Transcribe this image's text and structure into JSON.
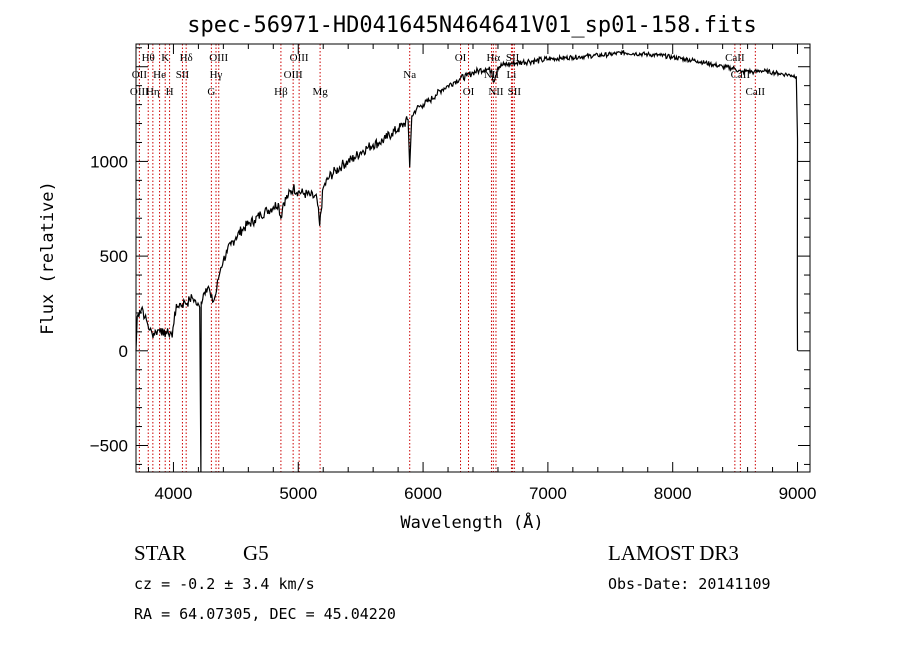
{
  "chart_data": {
    "type": "line",
    "title": "spec-56971-HD041645N464641V01_sp01-158.fits",
    "xlabel": "Wavelength (Å)",
    "ylabel": "Flux (relative)",
    "xlim": [
      3700,
      9100
    ],
    "ylim": [
      -640,
      1620
    ],
    "x_ticks": [
      4000,
      5000,
      6000,
      7000,
      8000,
      9000
    ],
    "y_ticks": [
      -500,
      0,
      500,
      1000
    ],
    "grid": false,
    "series": [
      {
        "points": [
          [
            3700,
            0
          ],
          [
            3710,
            180
          ],
          [
            3730,
            210
          ],
          [
            3750,
            230
          ],
          [
            3770,
            175
          ],
          [
            3790,
            150
          ],
          [
            3810,
            110
          ],
          [
            3830,
            90
          ],
          [
            3860,
            100
          ],
          [
            3880,
            110
          ],
          [
            3900,
            120
          ],
          [
            3920,
            80
          ],
          [
            3940,
            100
          ],
          [
            3960,
            90
          ],
          [
            3980,
            100
          ],
          [
            3990,
            70
          ],
          [
            4010,
            200
          ],
          [
            4030,
            230
          ],
          [
            4050,
            250
          ],
          [
            4070,
            240
          ],
          [
            4090,
            260
          ],
          [
            4110,
            250
          ],
          [
            4130,
            270
          ],
          [
            4150,
            280
          ],
          [
            4170,
            270
          ],
          [
            4190,
            240
          ],
          [
            4210,
            230
          ],
          [
            4220,
            -640
          ],
          [
            4222,
            260
          ],
          [
            4240,
            300
          ],
          [
            4260,
            330
          ],
          [
            4280,
            340
          ],
          [
            4300,
            280
          ],
          [
            4320,
            260
          ],
          [
            4340,
            300
          ],
          [
            4360,
            380
          ],
          [
            4380,
            440
          ],
          [
            4400,
            480
          ],
          [
            4430,
            520
          ],
          [
            4460,
            560
          ],
          [
            4500,
            600
          ],
          [
            4550,
            640
          ],
          [
            4600,
            670
          ],
          [
            4650,
            690
          ],
          [
            4700,
            720
          ],
          [
            4750,
            740
          ],
          [
            4800,
            760
          ],
          [
            4840,
            780
          ],
          [
            4861,
            700
          ],
          [
            4880,
            780
          ],
          [
            4920,
            820
          ],
          [
            4960,
            860
          ],
          [
            5000,
            840
          ],
          [
            5050,
            830
          ],
          [
            5100,
            820
          ],
          [
            5150,
            800
          ],
          [
            5172,
            660
          ],
          [
            5200,
            860
          ],
          [
            5250,
            920
          ],
          [
            5300,
            950
          ],
          [
            5350,
            980
          ],
          [
            5400,
            1000
          ],
          [
            5450,
            1020
          ],
          [
            5500,
            1050
          ],
          [
            5550,
            1070
          ],
          [
            5600,
            1090
          ],
          [
            5650,
            1100
          ],
          [
            5700,
            1120
          ],
          [
            5750,
            1150
          ],
          [
            5800,
            1170
          ],
          [
            5850,
            1200
          ],
          [
            5880,
            1220
          ],
          [
            5893,
            970
          ],
          [
            5910,
            1240
          ],
          [
            5950,
            1280
          ],
          [
            6000,
            1300
          ],
          [
            6050,
            1320
          ],
          [
            6100,
            1350
          ],
          [
            6150,
            1380
          ],
          [
            6200,
            1400
          ],
          [
            6250,
            1420
          ],
          [
            6300,
            1440
          ],
          [
            6350,
            1450
          ],
          [
            6400,
            1470
          ],
          [
            6450,
            1480
          ],
          [
            6500,
            1490
          ],
          [
            6550,
            1480
          ],
          [
            6563,
            1420
          ],
          [
            6600,
            1500
          ],
          [
            6650,
            1510
          ],
          [
            6700,
            1515
          ],
          [
            6750,
            1520
          ],
          [
            6800,
            1525
          ],
          [
            6850,
            1530
          ],
          [
            6900,
            1530
          ],
          [
            6950,
            1535
          ],
          [
            7000,
            1540
          ],
          [
            7100,
            1545
          ],
          [
            7200,
            1550
          ],
          [
            7300,
            1555
          ],
          [
            7400,
            1560
          ],
          [
            7500,
            1565
          ],
          [
            7600,
            1575
          ],
          [
            7700,
            1570
          ],
          [
            7800,
            1565
          ],
          [
            7900,
            1560
          ],
          [
            8000,
            1550
          ],
          [
            8100,
            1540
          ],
          [
            8200,
            1530
          ],
          [
            8300,
            1515
          ],
          [
            8400,
            1500
          ],
          [
            8500,
            1490
          ],
          [
            8550,
            1470
          ],
          [
            8600,
            1480
          ],
          [
            8650,
            1470
          ],
          [
            8700,
            1480
          ],
          [
            8750,
            1475
          ],
          [
            8800,
            1470
          ],
          [
            8850,
            1465
          ],
          [
            8900,
            1460
          ],
          [
            8950,
            1455
          ],
          [
            8990,
            1450
          ],
          [
            9000,
            1120
          ],
          [
            8998,
            250
          ],
          [
            9000,
            0
          ]
        ]
      }
    ],
    "annotations": [
      {
        "label": "Hθ",
        "x": 3798,
        "row": 0
      },
      {
        "label": "K",
        "x": 3934,
        "row": 0
      },
      {
        "label": "Hδ",
        "x": 4102,
        "row": 0
      },
      {
        "label": "OIII",
        "x": 4363,
        "row": 0
      },
      {
        "label": "OIII",
        "x": 5007,
        "row": 0
      },
      {
        "label": "OI",
        "x": 6300,
        "row": 0
      },
      {
        "label": "Hα",
        "x": 6563,
        "row": 0
      },
      {
        "label": "SII",
        "x": 6717,
        "row": 0
      },
      {
        "label": "CaII",
        "x": 8498,
        "row": 0
      },
      {
        "label": "OII",
        "x": 3727,
        "row": 1
      },
      {
        "label": "He",
        "x": 3889,
        "row": 1
      },
      {
        "label": "SII",
        "x": 4072,
        "row": 1
      },
      {
        "label": "Hγ",
        "x": 4341,
        "row": 1
      },
      {
        "label": "OIII",
        "x": 4959,
        "row": 1
      },
      {
        "label": "Na",
        "x": 5893,
        "row": 1
      },
      {
        "label": "NII",
        "x": 6548,
        "row": 1
      },
      {
        "label": "Li",
        "x": 6708,
        "row": 1
      },
      {
        "label": "CaII",
        "x": 8542,
        "row": 1
      },
      {
        "label": "OIII",
        "x": 3727,
        "row": 2
      },
      {
        "label": "Hη",
        "x": 3835,
        "row": 2
      },
      {
        "label": "H",
        "x": 3969,
        "row": 2
      },
      {
        "label": "G",
        "x": 4304,
        "row": 2
      },
      {
        "label": "Hβ",
        "x": 4861,
        "row": 2
      },
      {
        "label": "Mg",
        "x": 5175,
        "row": 2
      },
      {
        "label": "OI",
        "x": 6364,
        "row": 2
      },
      {
        "label": "NII",
        "x": 6584,
        "row": 2
      },
      {
        "label": "SII",
        "x": 6731,
        "row": 2
      },
      {
        "label": "CaII",
        "x": 8662,
        "row": 2
      }
    ],
    "line_positions": [
      3727,
      3798,
      3835,
      3889,
      3934,
      3969,
      4072,
      4102,
      4304,
      4341,
      4363,
      4861,
      4959,
      5007,
      5175,
      5893,
      6300,
      6364,
      6548,
      6563,
      6584,
      6708,
      6717,
      6731,
      8498,
      8542,
      8662
    ],
    "line_color": "#cc0000"
  },
  "info": {
    "object_class": "STAR",
    "subclass": "G5",
    "survey": "LAMOST DR3",
    "redshift": "cz = -0.2 ± 3.4 km/s",
    "obs_date": "Obs-Date: 20141109",
    "coords": "RA =  64.07305, DEC =  45.04220"
  }
}
